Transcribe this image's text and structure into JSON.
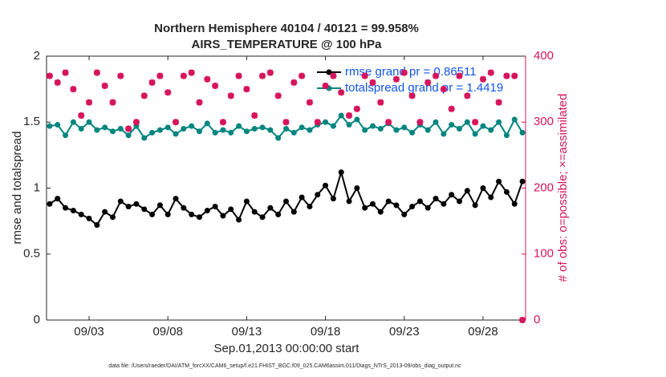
{
  "chart_data": {
    "type": "line",
    "title": [
      "Northern Hemisphere 40104 / 40121 = 99.958%",
      "AIRS_TEMPERATURE @ 100 hPa"
    ],
    "xlabel": "Sep.01,2013 00:00:00 start",
    "ylabel": "rmse and totalspread",
    "y2label": "# of obs: o=possible; ×=assimilated",
    "footnote": "data file: /Users/raeder/DAI/ATM_forcXX/CAM6_setup/f.e21.FHIST_BGC.f09_025.CAM6assim.011/Diags_NTrS_2013-09/obs_diag_output.nc",
    "x": [
      0.5,
      1,
      1.5,
      2,
      2.5,
      3,
      3.5,
      4,
      4.5,
      5,
      5.5,
      6,
      6.5,
      7,
      7.5,
      8,
      8.5,
      9,
      9.5,
      10,
      10.5,
      11,
      11.5,
      12,
      12.5,
      13,
      13.5,
      14,
      14.5,
      15,
      15.5,
      16,
      16.5,
      17,
      17.5,
      18,
      18.5,
      19,
      19.5,
      20,
      20.5,
      21,
      21.5,
      22,
      22.5,
      23,
      23.5,
      24,
      24.5,
      25,
      25.5,
      26,
      26.5,
      27,
      27.5,
      28,
      28.5,
      29,
      29.5,
      30,
      30.5
    ],
    "xlim": [
      0.3,
      30.7
    ],
    "xticks": [
      {
        "value": 3,
        "label": "09/03"
      },
      {
        "value": 8,
        "label": "09/08"
      },
      {
        "value": 13,
        "label": "09/13"
      },
      {
        "value": 18,
        "label": "09/18"
      },
      {
        "value": 23,
        "label": "09/23"
      },
      {
        "value": 28,
        "label": "09/28"
      }
    ],
    "ylim": [
      0,
      2
    ],
    "yticks": [
      0,
      0.5,
      1,
      1.5,
      2
    ],
    "y2lim": [
      0,
      400
    ],
    "y2ticks": [
      0,
      100,
      200,
      300,
      400
    ],
    "legend": "northeast",
    "series": [
      {
        "name": "rmse grand pr = 0.86511",
        "color": "#000000",
        "values": [
          0.88,
          0.92,
          0.85,
          0.83,
          0.8,
          0.77,
          0.72,
          0.82,
          0.78,
          0.9,
          0.86,
          0.88,
          0.84,
          0.8,
          0.87,
          0.8,
          0.92,
          0.85,
          0.8,
          0.78,
          0.83,
          0.86,
          0.79,
          0.84,
          0.76,
          0.9,
          0.82,
          0.78,
          0.85,
          0.8,
          0.9,
          0.82,
          0.93,
          0.86,
          0.95,
          1.02,
          0.92,
          1.12,
          0.9,
          1.0,
          0.85,
          0.88,
          0.82,
          0.9,
          0.87,
          0.8,
          0.86,
          0.9,
          0.85,
          0.92,
          0.88,
          0.95,
          0.9,
          0.98,
          0.87,
          1.0,
          0.93,
          1.05,
          0.97,
          0.88,
          1.05
        ]
      },
      {
        "name": "totalspread grand pr = 1.4419",
        "color": "#00857f",
        "values": [
          1.47,
          1.48,
          1.4,
          1.5,
          1.45,
          1.5,
          1.44,
          1.46,
          1.43,
          1.45,
          1.4,
          1.47,
          1.38,
          1.42,
          1.44,
          1.46,
          1.41,
          1.45,
          1.47,
          1.43,
          1.49,
          1.42,
          1.44,
          1.42,
          1.47,
          1.43,
          1.45,
          1.46,
          1.44,
          1.38,
          1.45,
          1.42,
          1.46,
          1.44,
          1.48,
          1.5,
          1.47,
          1.55,
          1.48,
          1.52,
          1.44,
          1.47,
          1.45,
          1.49,
          1.44,
          1.46,
          1.42,
          1.48,
          1.44,
          1.5,
          1.41,
          1.48,
          1.45,
          1.5,
          1.41,
          1.47,
          1.44,
          1.5,
          1.4,
          1.52,
          1.42
        ]
      },
      {
        "axis": "y2",
        "color": "#d6145c",
        "values": [
          370,
          360,
          375,
          350,
          310,
          330,
          375,
          355,
          330,
          370,
          290,
          300,
          340,
          360,
          370,
          345,
          300,
          370,
          375,
          330,
          365,
          355,
          300,
          340,
          370,
          350,
          310,
          370,
          375,
          340,
          300,
          360,
          370,
          330,
          300,
          355,
          370,
          345,
          310,
          320,
          370,
          360,
          330,
          300,
          365,
          375,
          340,
          300,
          360,
          370,
          350,
          320,
          370,
          340,
          300,
          365,
          375,
          330,
          370,
          370,
          0
        ]
      }
    ]
  }
}
